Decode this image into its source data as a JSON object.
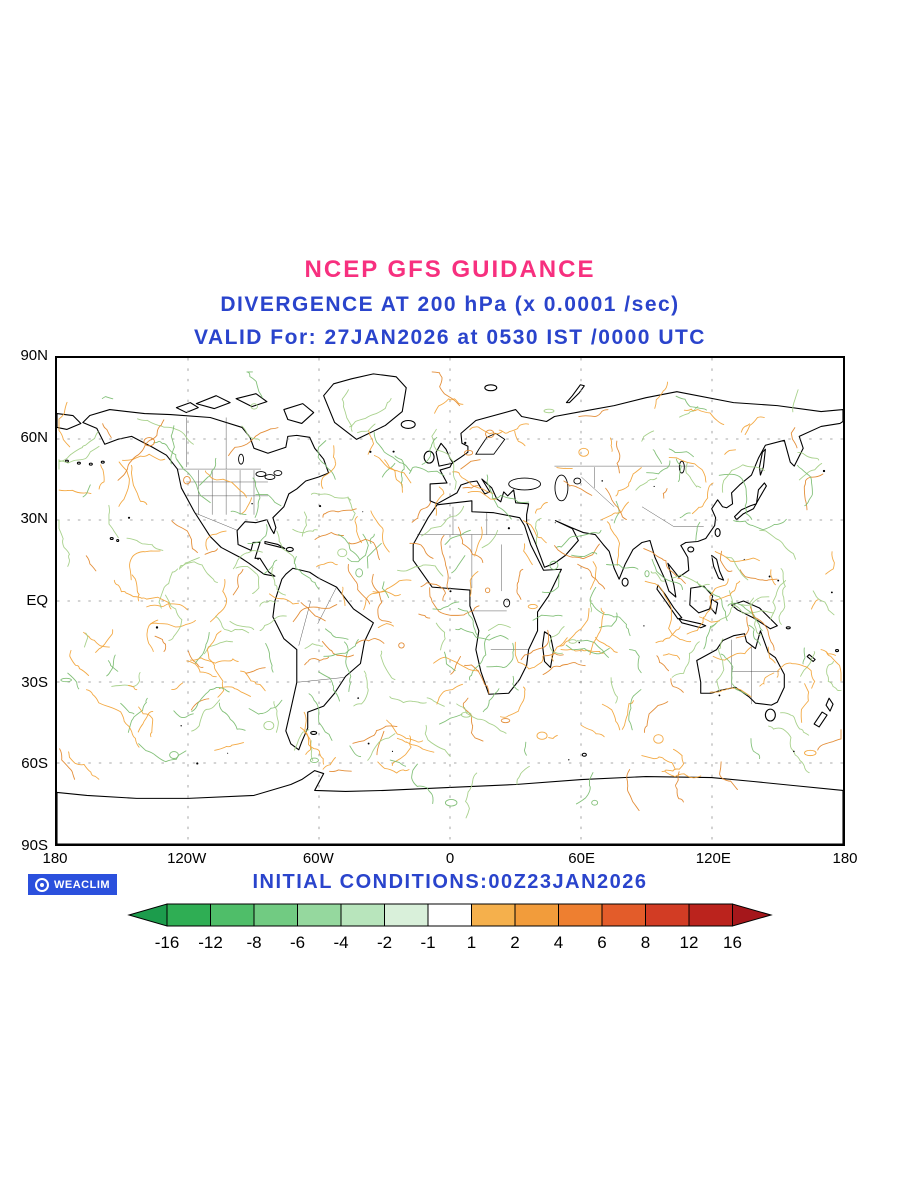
{
  "header": {
    "title": "NCEP GFS GUIDANCE",
    "subtitle": "DIVERGENCE AT 200 hPa (x 0.0001 /sec)",
    "valid": "VALID For: 27JAN2026 at 0530 IST /0000 UTC",
    "title_color": "#f7307f",
    "accent_color": "#2a44cc"
  },
  "map": {
    "x_ticks": [
      "180",
      "120W",
      "60W",
      "0",
      "60E",
      "120E",
      "180"
    ],
    "y_ticks": [
      "90N",
      "60N",
      "30N",
      "EQ",
      "30S",
      "60S",
      "90S"
    ],
    "grid_style": "dashed",
    "coastline_color": "#000000"
  },
  "contours": {
    "count": 340,
    "colors": [
      "#7cbd72",
      "#a3cf86",
      "#f2a43a",
      "#e2882e"
    ],
    "color_weights": [
      0.26,
      0.2,
      0.34,
      0.2
    ]
  },
  "footer": {
    "watermark": "WEACLIM",
    "watermark_bg": "#2b50dd",
    "initial_conditions": "INITIAL CONDITIONS:00Z23JAN2026"
  },
  "chart_data": {
    "type": "heatmap",
    "title": "NCEP GFS GUIDANCE",
    "subtitle": "DIVERGENCE AT 200 hPa (x 0.0001 /sec)",
    "variable": "Divergence at 200 hPa",
    "units": "x 0.0001 /sec",
    "valid_time": "27JAN2026 at 0530 IST /0000 UTC",
    "initial_conditions": "00Z23JAN2026",
    "projection": "equirectangular world map, 180W-180E, 90S-90N",
    "x_axis": {
      "label": "longitude",
      "ticks": [
        "180",
        "120W",
        "60W",
        "0",
        "60E",
        "120E",
        "180"
      ]
    },
    "y_axis": {
      "label": "latitude",
      "ticks": [
        "90N",
        "60N",
        "30N",
        "EQ",
        "30S",
        "60S",
        "90S"
      ]
    },
    "legend": {
      "position": "bottom",
      "labels": [
        "-16",
        "-12",
        "-8",
        "-6",
        "-4",
        "-2",
        "-1",
        "1",
        "2",
        "4",
        "6",
        "8",
        "12",
        "16"
      ],
      "colors": [
        "#1c9c4c",
        "#2fae54",
        "#4fbe69",
        "#71cb82",
        "#95d89e",
        "#b8e5bc",
        "#d9f0da",
        "#ffffff",
        "#f5b04c",
        "#f29c3b",
        "#ee7f30",
        "#e35c2a",
        "#d23c24",
        "#bb231d",
        "#a5171b"
      ]
    }
  }
}
